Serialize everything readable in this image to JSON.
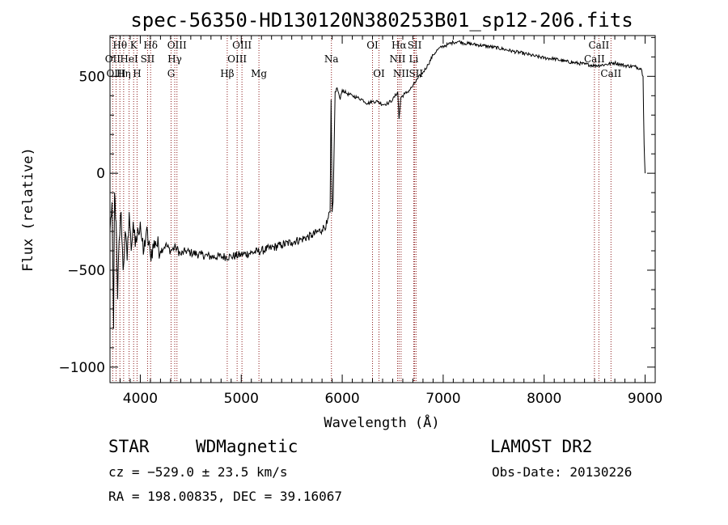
{
  "chart_data": {
    "type": "line",
    "title": "spec-56350-HD130120N380253B01_sp12-206.fits",
    "xlabel": "Wavelength (Å)",
    "ylabel": "Flux (relative)",
    "xlim": [
      3700,
      9100
    ],
    "ylim": [
      -1080,
      710
    ],
    "x_ticks": [
      4000,
      5000,
      6000,
      7000,
      8000,
      9000
    ],
    "y_ticks": [
      -1000,
      -500,
      0,
      500
    ],
    "grid": false,
    "series": [
      {
        "color": "#000000",
        "points": [
          [
            3700,
            -300
          ],
          [
            3720,
            -150
          ],
          [
            3735,
            -800
          ],
          [
            3745,
            -100
          ],
          [
            3760,
            -250
          ],
          [
            3775,
            -650
          ],
          [
            3790,
            -350
          ],
          [
            3810,
            -200
          ],
          [
            3830,
            -500
          ],
          [
            3850,
            -300
          ],
          [
            3870,
            -450
          ],
          [
            3890,
            -200
          ],
          [
            3910,
            -400
          ],
          [
            3930,
            -250
          ],
          [
            3950,
            -380
          ],
          [
            3980,
            -300
          ],
          [
            4000,
            -250
          ],
          [
            4030,
            -420
          ],
          [
            4060,
            -300
          ],
          [
            4100,
            -420
          ],
          [
            4150,
            -350
          ],
          [
            4200,
            -400
          ],
          [
            4250,
            -370
          ],
          [
            4300,
            -400
          ],
          [
            4350,
            -380
          ],
          [
            4400,
            -420
          ],
          [
            4450,
            -400
          ],
          [
            4500,
            -410
          ],
          [
            4600,
            -420
          ],
          [
            4700,
            -430
          ],
          [
            4800,
            -430
          ],
          [
            4900,
            -430
          ],
          [
            5000,
            -420
          ],
          [
            5100,
            -410
          ],
          [
            5200,
            -400
          ],
          [
            5300,
            -385
          ],
          [
            5400,
            -370
          ],
          [
            5500,
            -355
          ],
          [
            5600,
            -340
          ],
          [
            5700,
            -320
          ],
          [
            5800,
            -290
          ],
          [
            5850,
            -260
          ],
          [
            5880,
            -200
          ],
          [
            5890,
            380
          ],
          [
            5900,
            -200
          ],
          [
            5910,
            -150
          ],
          [
            5930,
            420
          ],
          [
            5950,
            440
          ],
          [
            5960,
            420
          ],
          [
            5980,
            380
          ],
          [
            6000,
            430
          ],
          [
            6050,
            410
          ],
          [
            6100,
            400
          ],
          [
            6150,
            390
          ],
          [
            6200,
            380
          ],
          [
            6250,
            360
          ],
          [
            6300,
            370
          ],
          [
            6350,
            370
          ],
          [
            6400,
            355
          ],
          [
            6450,
            360
          ],
          [
            6500,
            380
          ],
          [
            6550,
            420
          ],
          [
            6563,
            280
          ],
          [
            6580,
            390
          ],
          [
            6620,
            410
          ],
          [
            6650,
            420
          ],
          [
            6700,
            450
          ],
          [
            6750,
            490
          ],
          [
            6800,
            520
          ],
          [
            6850,
            560
          ],
          [
            6900,
            610
          ],
          [
            6950,
            640
          ],
          [
            7000,
            655
          ],
          [
            7050,
            665
          ],
          [
            7100,
            675
          ],
          [
            7150,
            680
          ],
          [
            7200,
            672
          ],
          [
            7300,
            665
          ],
          [
            7400,
            658
          ],
          [
            7500,
            650
          ],
          [
            7600,
            640
          ],
          [
            7700,
            628
          ],
          [
            7800,
            618
          ],
          [
            7900,
            605
          ],
          [
            8000,
            595
          ],
          [
            8100,
            590
          ],
          [
            8200,
            578
          ],
          [
            8300,
            570
          ],
          [
            8400,
            563
          ],
          [
            8500,
            555
          ],
          [
            8600,
            560
          ],
          [
            8700,
            570
          ],
          [
            8800,
            555
          ],
          [
            8900,
            550
          ],
          [
            8960,
            540
          ],
          [
            8980,
            500
          ],
          [
            8990,
            150
          ],
          [
            9000,
            0
          ]
        ]
      }
    ],
    "spectral_lines": [
      {
        "label": "Hθ",
        "wavelength": 3798,
        "row": 1
      },
      {
        "label": "OII",
        "wavelength": 3727,
        "row": 2
      },
      {
        "label": "OIII",
        "wavelength": 3760,
        "row": 3
      },
      {
        "label": "Hη",
        "wavelength": 3835,
        "row": 3
      },
      {
        "label": "K",
        "wavelength": 3934,
        "row": 1
      },
      {
        "label": "HeI",
        "wavelength": 3889,
        "row": 2
      },
      {
        "label": "H",
        "wavelength": 3968,
        "row": 3
      },
      {
        "label": "Hδ",
        "wavelength": 4102,
        "row": 1
      },
      {
        "label": "SII",
        "wavelength": 4072,
        "row": 2
      },
      {
        "label": "OIII",
        "wavelength": 4363,
        "row": 1
      },
      {
        "label": "Hγ",
        "wavelength": 4341,
        "row": 2
      },
      {
        "label": "G",
        "wavelength": 4305,
        "row": 3
      },
      {
        "label": "Hβ",
        "wavelength": 4861,
        "row": 3
      },
      {
        "label": "OIII",
        "wavelength": 5007,
        "row": 1
      },
      {
        "label": "OIII",
        "wavelength": 4959,
        "row": 2
      },
      {
        "label": "Mg",
        "wavelength": 5175,
        "row": 3
      },
      {
        "label": "Na",
        "wavelength": 5893,
        "row": 2
      },
      {
        "label": "OI",
        "wavelength": 6300,
        "row": 1
      },
      {
        "label": "OI",
        "wavelength": 6364,
        "row": 3
      },
      {
        "label": "Hα",
        "wavelength": 6563,
        "row": 1
      },
      {
        "label": "NII",
        "wavelength": 6548,
        "row": 2
      },
      {
        "label": "NII",
        "wavelength": 6583,
        "row": 3
      },
      {
        "label": "SII",
        "wavelength": 6717,
        "row": 1
      },
      {
        "label": "Li",
        "wavelength": 6708,
        "row": 2
      },
      {
        "label": "SII",
        "wavelength": 6731,
        "row": 3
      },
      {
        "label": "CaII",
        "wavelength": 8542,
        "row": 1
      },
      {
        "label": "CaII",
        "wavelength": 8498,
        "row": 2
      },
      {
        "label": "CaII",
        "wavelength": 8662,
        "row": 3
      }
    ]
  },
  "info": {
    "class": "STAR",
    "subclass": "WDMagnetic",
    "survey": "LAMOST DR2",
    "redshift": "cz = −529.0 ± 23.5 km/s",
    "obs_date": "Obs-Date: 20130226",
    "coords": "RA = 198.00835, DEC =  39.16067"
  }
}
